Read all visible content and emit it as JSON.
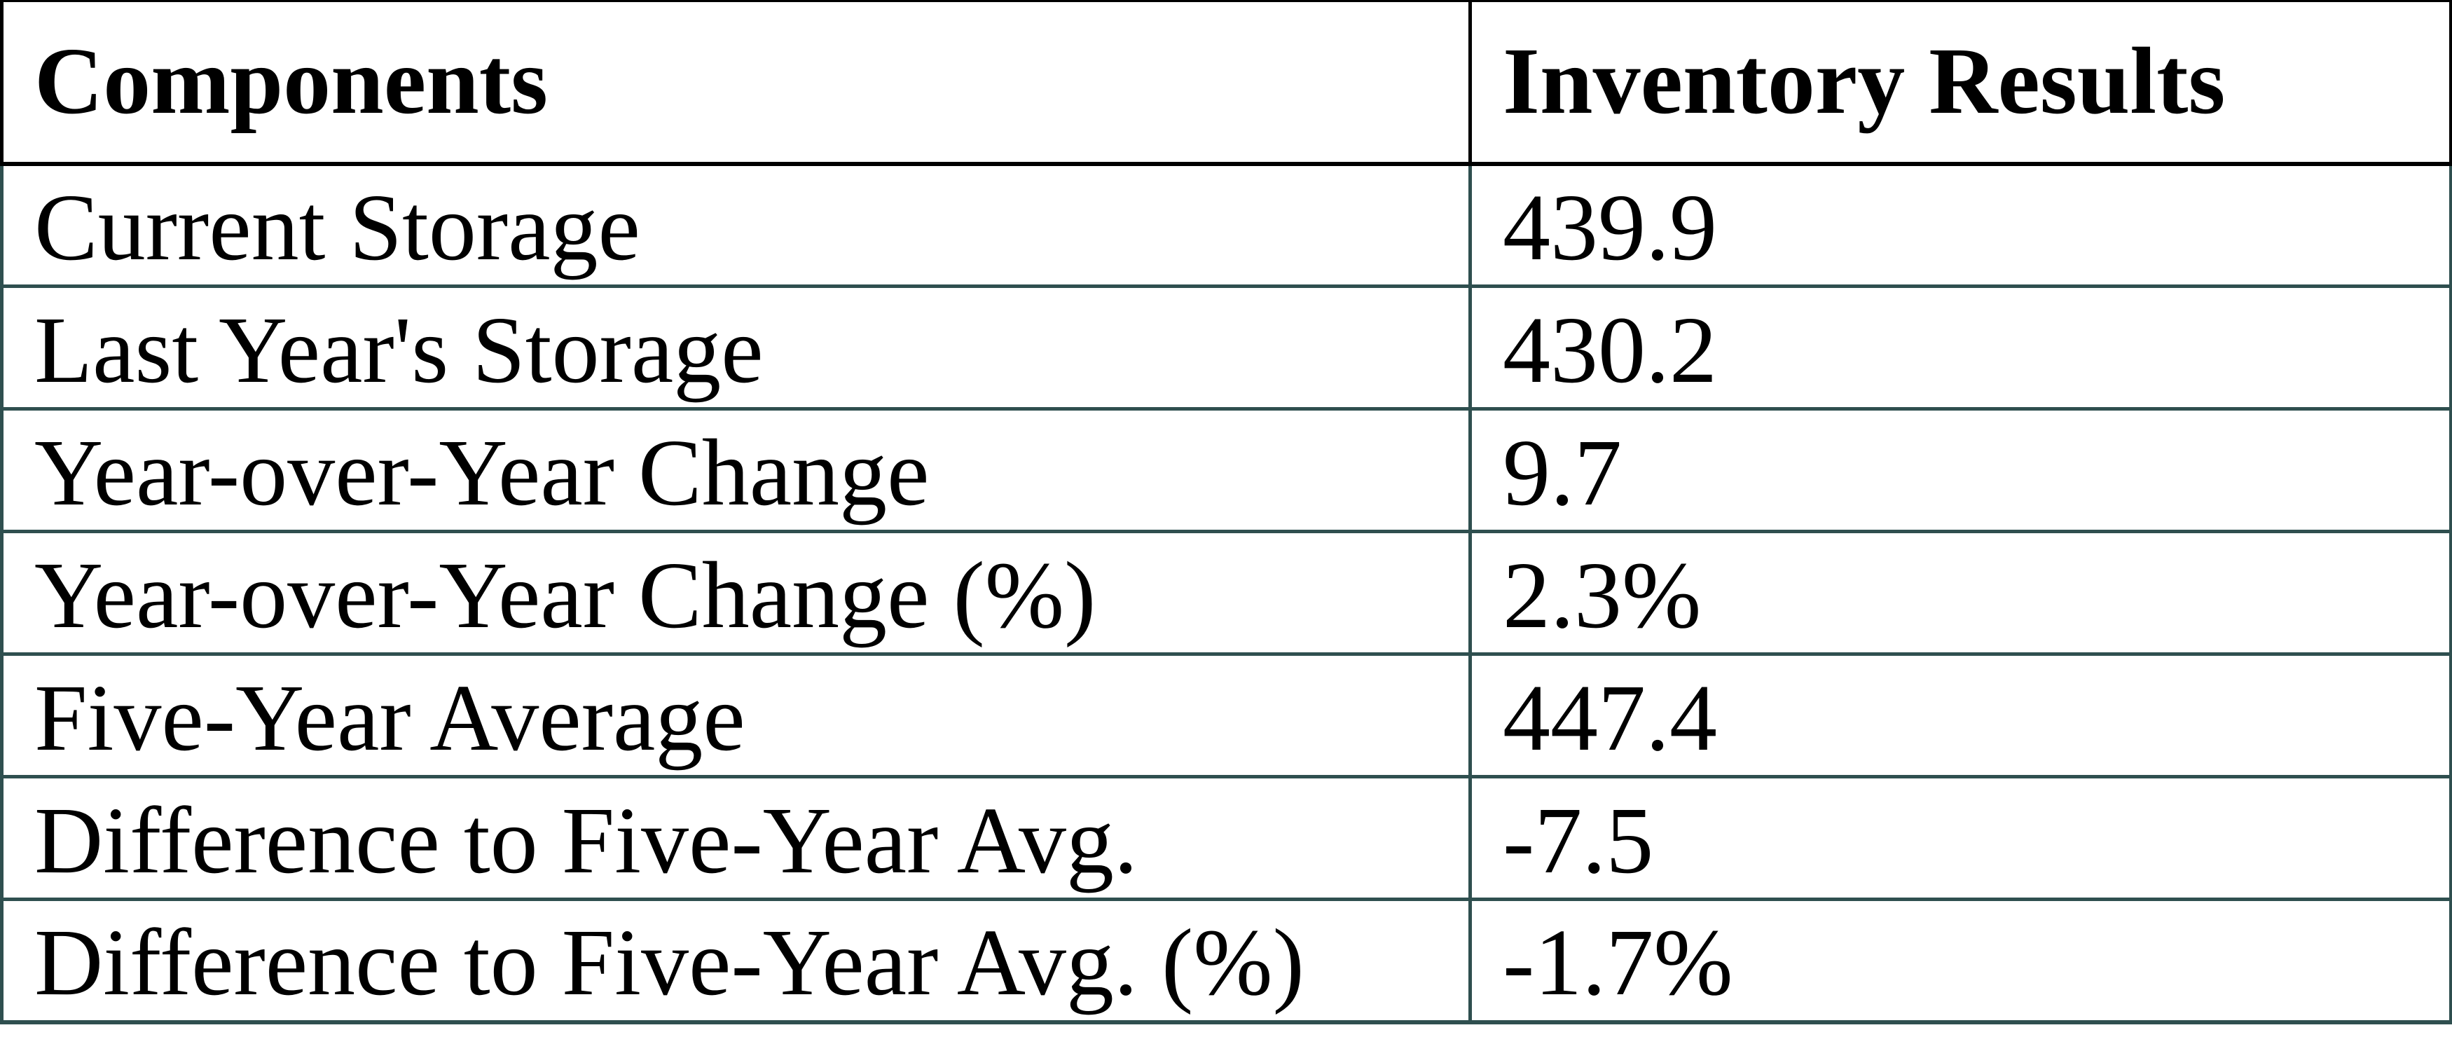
{
  "chart_data": {
    "type": "table",
    "columns": [
      "Components",
      "Inventory Results"
    ],
    "rows": [
      [
        "Current Storage",
        "439.9"
      ],
      [
        "Last Year's Storage",
        "430.2"
      ],
      [
        "Year-over-Year Change",
        "9.7"
      ],
      [
        "Year-over-Year Change (%)",
        "2.3%"
      ],
      [
        "Five-Year Average",
        "447.4"
      ],
      [
        "Difference to Five-Year Avg.",
        "-7.5"
      ],
      [
        "Difference to Five-Year Avg. (%)",
        "-1.7%"
      ]
    ]
  },
  "colors": {
    "header_border": "#000000",
    "row_border": "#2F4F4F",
    "text": "#000000",
    "background": "#FFFFFF"
  }
}
